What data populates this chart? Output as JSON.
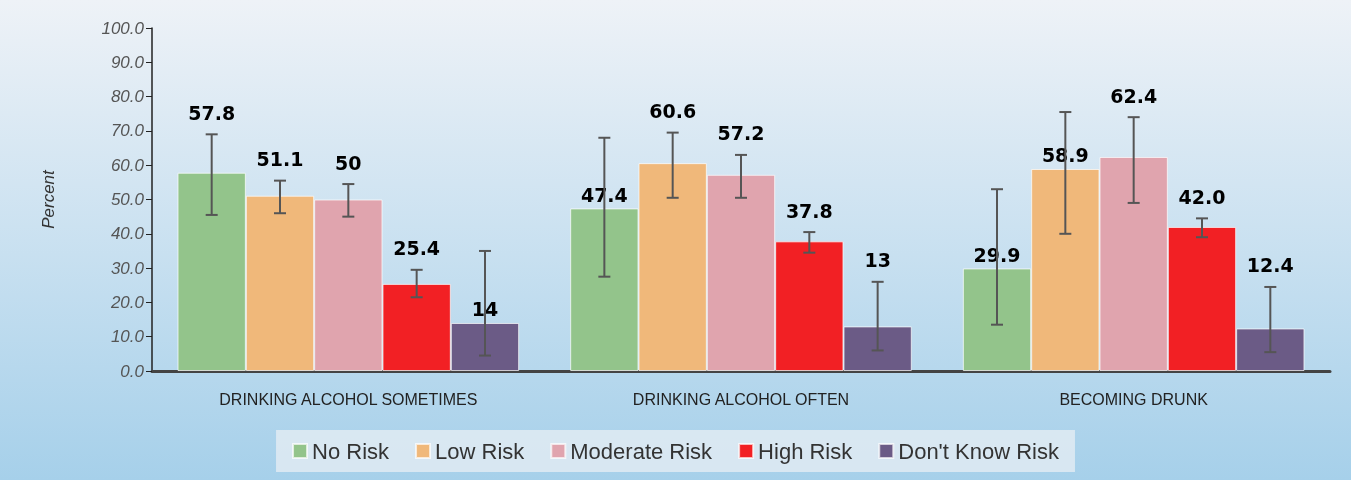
{
  "chart_data": {
    "type": "bar",
    "ylabel": "Percent",
    "categories": [
      "DRINKING ALCOHOL SOMETIMES",
      "DRINKING ALCOHOL OFTEN",
      "BECOMING DRUNK"
    ],
    "series": [
      {
        "name": "No Risk",
        "color": "#93c48b",
        "values": [
          57.8,
          47.4,
          29.9
        ],
        "value_labels": [
          "57.8",
          "47.4",
          "29.9"
        ],
        "errors": [
          [
            45.5,
            69.0
          ],
          [
            27.5,
            68.0
          ],
          [
            13.5,
            53.0
          ]
        ]
      },
      {
        "name": "Low Risk",
        "color": "#f0b87a",
        "values": [
          51.1,
          60.6,
          58.9
        ],
        "value_labels": [
          "51.1",
          "60.6",
          "58.9"
        ],
        "errors": [
          [
            46.0,
            55.5
          ],
          [
            50.5,
            69.5
          ],
          [
            40.0,
            75.5
          ]
        ]
      },
      {
        "name": "Moderate Risk",
        "color": "#e0a4ae",
        "values": [
          50,
          57.2,
          62.4
        ],
        "value_labels": [
          "50",
          "57.2",
          "62.4"
        ],
        "errors": [
          [
            45.0,
            54.5
          ],
          [
            50.5,
            63.0
          ],
          [
            49.0,
            74.0
          ]
        ]
      },
      {
        "name": "High Risk",
        "color": "#f22024",
        "values": [
          25.4,
          37.8,
          42.0
        ],
        "value_labels": [
          "25.4",
          "37.8",
          "42.0"
        ],
        "errors": [
          [
            21.5,
            29.5
          ],
          [
            34.5,
            40.5
          ],
          [
            39.0,
            44.5
          ]
        ]
      },
      {
        "name": "Don't Know Risk",
        "color": "#6b5b86",
        "values": [
          14,
          13,
          12.4
        ],
        "value_labels": [
          "14",
          "13",
          "12.4"
        ],
        "errors": [
          [
            4.5,
            35.0
          ],
          [
            6.0,
            26.0
          ],
          [
            5.5,
            24.5
          ]
        ]
      }
    ],
    "ylim": [
      0,
      100
    ],
    "yticks": [
      {
        "value": 0,
        "label": "0.0"
      },
      {
        "value": 10,
        "label": "10.0"
      },
      {
        "value": 20,
        "label": "20.0"
      },
      {
        "value": 30,
        "label": "30.0"
      },
      {
        "value": 40,
        "label": "40.0"
      },
      {
        "value": 50,
        "label": "50.0"
      },
      {
        "value": 60,
        "label": "60.0"
      },
      {
        "value": 70,
        "label": "70.0"
      },
      {
        "value": 80,
        "label": "80.0"
      },
      {
        "value": 90,
        "label": "90.0"
      },
      {
        "value": 100,
        "label": "100.0"
      }
    ],
    "grid": false,
    "legend": "bottom"
  }
}
